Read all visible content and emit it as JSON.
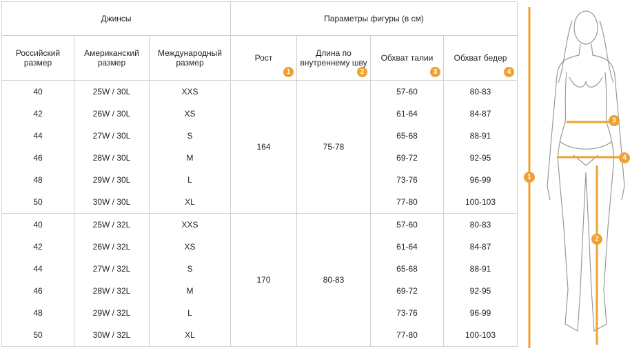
{
  "table": {
    "group_headers": [
      "Джинсы",
      "Параметры фигуры (в см)"
    ],
    "columns": [
      {
        "label": "Российский размер"
      },
      {
        "label": "Американский размер"
      },
      {
        "label": "Международный размер"
      },
      {
        "label": "Рост",
        "badge": "1"
      },
      {
        "label": "Длина по внутреннему шву",
        "badge": "2"
      },
      {
        "label": "Обхват талии",
        "badge": "3"
      },
      {
        "label": "Обхват бедер",
        "badge": "4"
      }
    ],
    "groups": [
      {
        "height": "164",
        "inseam": "75-78",
        "rows": [
          [
            "40",
            "25W / 30L",
            "XXS",
            "57-60",
            "80-83"
          ],
          [
            "42",
            "26W / 30L",
            "XS",
            "61-64",
            "84-87"
          ],
          [
            "44",
            "27W / 30L",
            "S",
            "65-68",
            "88-91"
          ],
          [
            "46",
            "28W / 30L",
            "M",
            "69-72",
            "92-95"
          ],
          [
            "48",
            "29W / 30L",
            "L",
            "73-76",
            "96-99"
          ],
          [
            "50",
            "30W / 30L",
            "XL",
            "77-80",
            "100-103"
          ]
        ]
      },
      {
        "height": "170",
        "inseam": "80-83",
        "rows": [
          [
            "40",
            "25W / 32L",
            "XXS",
            "57-60",
            "80-83"
          ],
          [
            "42",
            "26W / 32L",
            "XS",
            "61-64",
            "84-87"
          ],
          [
            "44",
            "27W / 32L",
            "S",
            "65-68",
            "88-91"
          ],
          [
            "46",
            "28W / 32L",
            "M",
            "69-72",
            "92-95"
          ],
          [
            "48",
            "29W / 32L",
            "L",
            "73-76",
            "96-99"
          ],
          [
            "50",
            "30W / 32L",
            "XL",
            "77-80",
            "100-103"
          ]
        ]
      }
    ]
  },
  "figure": {
    "markers": [
      "1",
      "2",
      "3",
      "4"
    ]
  }
}
